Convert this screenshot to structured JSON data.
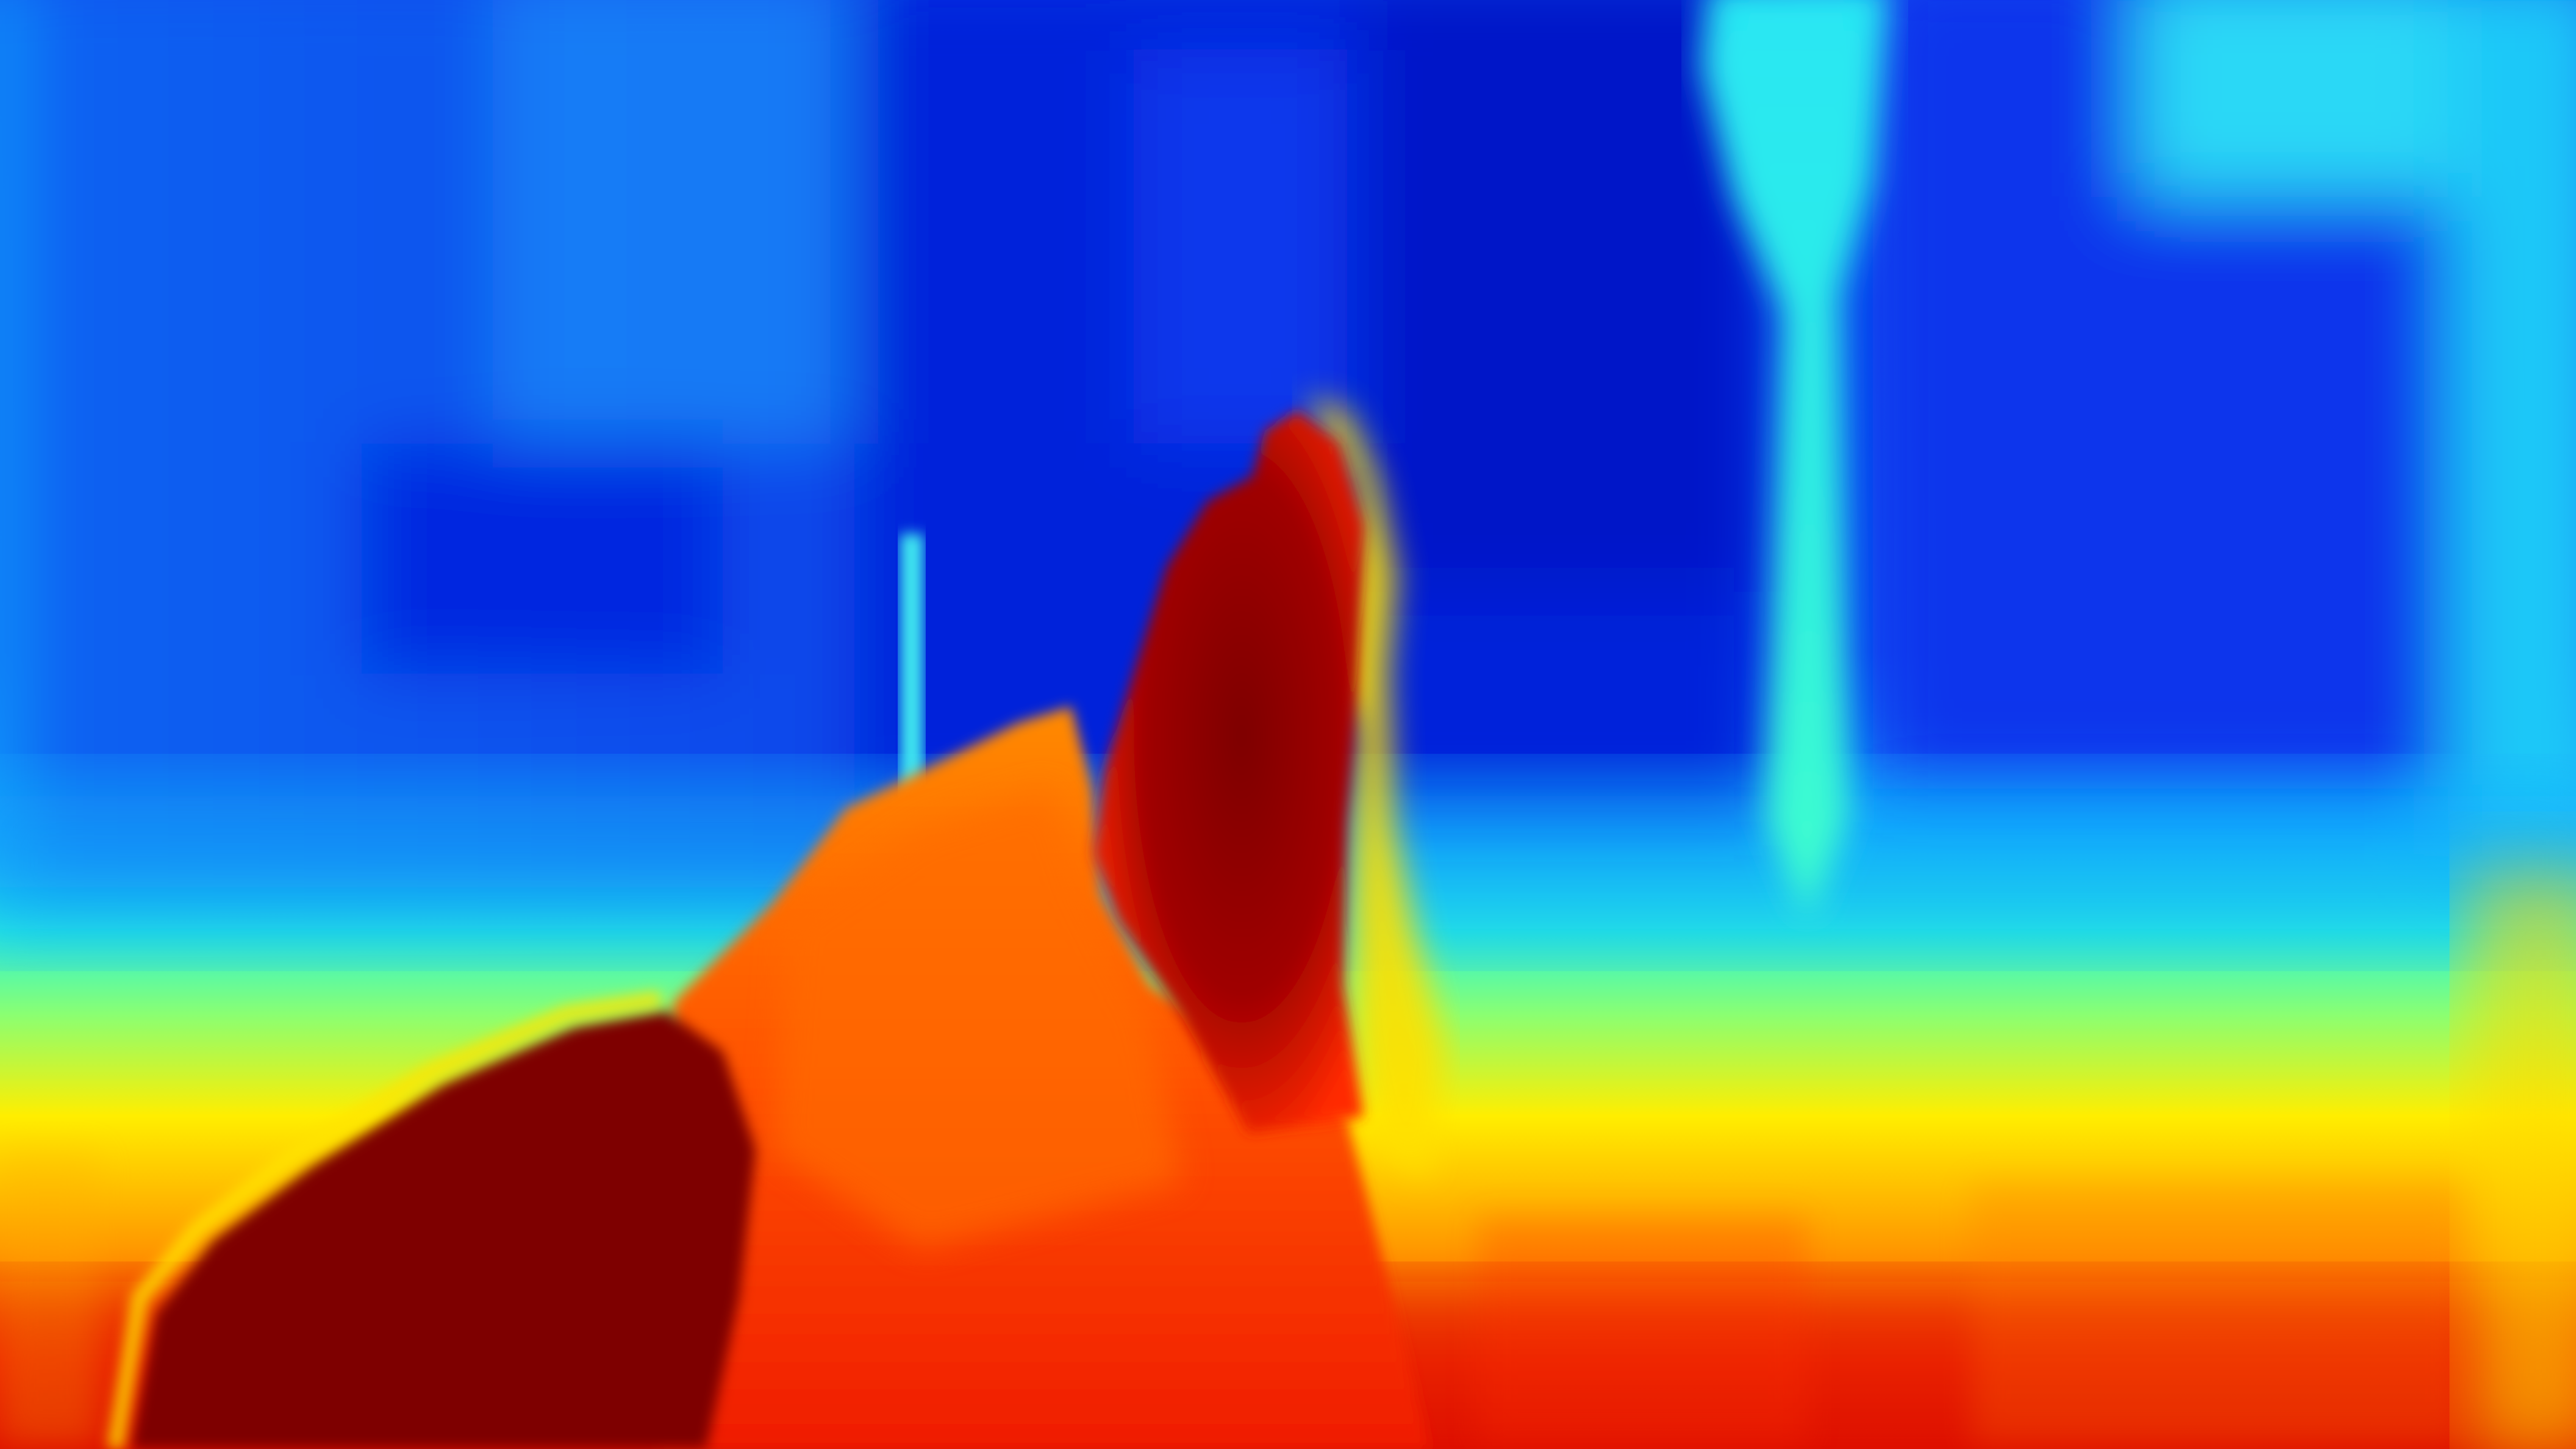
{
  "image": {
    "kind": "depth-map",
    "colormap": "jet",
    "colormap_stops": [
      "#00007f",
      "#0000ff",
      "#007fff",
      "#00ffff",
      "#7fff7f",
      "#ffff00",
      "#ff7f00",
      "#ff0000",
      "#7f0000"
    ],
    "background_color": "#0a2fd6",
    "scene_regions": [
      {
        "name": "far-wall-left",
        "color": "#1466f2"
      },
      {
        "name": "far-wall-center",
        "color": "#001fe0"
      },
      {
        "name": "far-wall-right",
        "color": "#0b3af0"
      },
      {
        "name": "floor-midground",
        "color": "#33ffd0"
      },
      {
        "name": "floor-near",
        "color": "#ffd000"
      },
      {
        "name": "floor-nearest",
        "color": "#e81a00"
      },
      {
        "name": "foreground-object-left",
        "color": "#7f0000"
      },
      {
        "name": "foreground-object-center",
        "color": "#ff5a00"
      },
      {
        "name": "foreground-column",
        "color": "#8a0000"
      },
      {
        "name": "background-pillar",
        "color": "#3cf0e6"
      }
    ]
  }
}
